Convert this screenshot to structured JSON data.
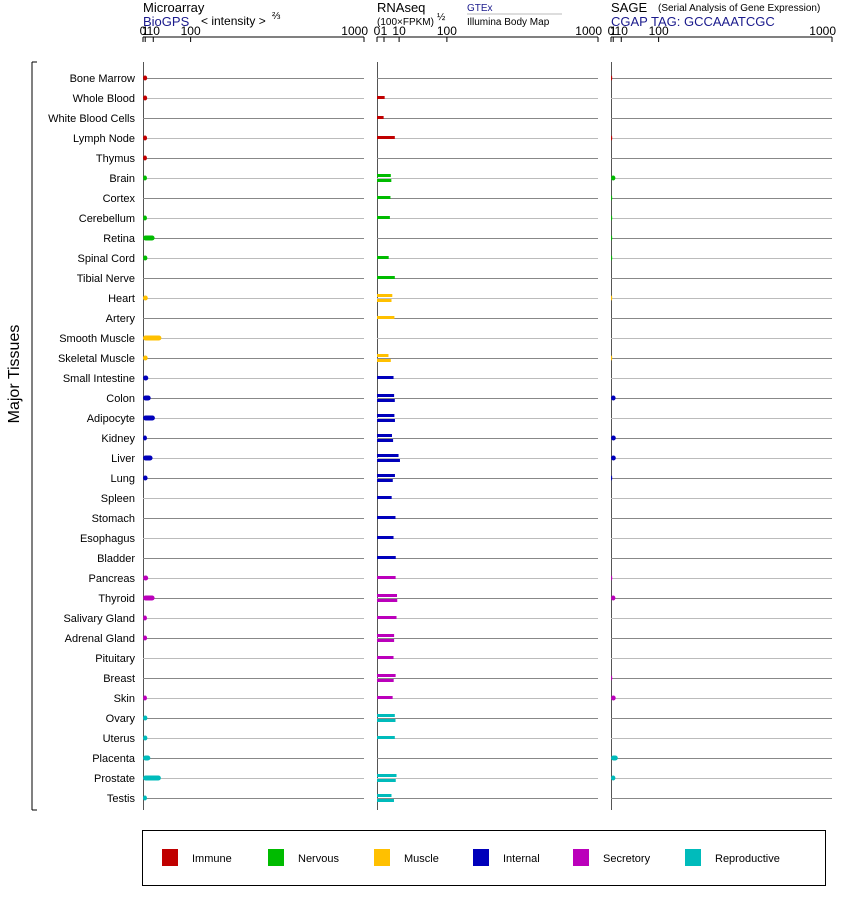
{
  "chart_data": {
    "type": "bar",
    "orientation": "horizontal",
    "y_axis_label": "Major Tissues",
    "tissues": [
      "Bone Marrow",
      "Whole Blood",
      "White Blood Cells",
      "Lymph Node",
      "Thymus",
      "Brain",
      "Cortex",
      "Cerebellum",
      "Retina",
      "Spinal Cord",
      "Tibial Nerve",
      "Heart",
      "Artery",
      "Smooth Muscle",
      "Skeletal Muscle",
      "Small Intestine",
      "Colon",
      "Adipocyte",
      "Kidney",
      "Liver",
      "Lung",
      "Spleen",
      "Stomach",
      "Esophagus",
      "Bladder",
      "Pancreas",
      "Thyroid",
      "Salivary Gland",
      "Adrenal Gland",
      "Pituitary",
      "Breast",
      "Skin",
      "Ovary",
      "Uterus",
      "Placenta",
      "Prostate",
      "Testis"
    ],
    "tissue_groups": [
      "Immune",
      "Immune",
      "Immune",
      "Immune",
      "Immune",
      "Nervous",
      "Nervous",
      "Nervous",
      "Nervous",
      "Nervous",
      "Nervous",
      "Muscle",
      "Muscle",
      "Muscle",
      "Muscle",
      "Internal",
      "Internal",
      "Internal",
      "Internal",
      "Internal",
      "Internal",
      "Internal",
      "Internal",
      "Internal",
      "Internal",
      "Secretory",
      "Secretory",
      "Secretory",
      "Secretory",
      "Secretory",
      "Secretory",
      "Secretory",
      "Reproductive",
      "Reproductive",
      "Reproductive",
      "Reproductive",
      "Reproductive"
    ],
    "legend": [
      {
        "name": "Immune",
        "color": "#c00000"
      },
      {
        "name": "Nervous",
        "color": "#00bb00"
      },
      {
        "name": "Muscle",
        "color": "#ffc000"
      },
      {
        "name": "Internal",
        "color": "#0000bb"
      },
      {
        "name": "Secretory",
        "color": "#bb00bb"
      },
      {
        "name": "Reproductive",
        "color": "#00bbbb"
      }
    ],
    "legend_position": "bottom",
    "panels": [
      {
        "id": "microarray",
        "title": "Microarray",
        "subtitle_left": "BioGPS",
        "subtitle_right": "< intensity >",
        "subtitle_exp": "⅔",
        "scale": "power 2/3",
        "ticks": [
          "0",
          "1",
          "10",
          "100",
          "1000"
        ],
        "xlim": [
          0,
          1000
        ],
        "values": [
          [
            2.6
          ],
          [
            2.6
          ],
          [],
          [
            2.5
          ],
          [
            2.4
          ],
          [
            2.4
          ],
          [],
          [
            2.4
          ],
          [
            12
          ],
          [
            2.8
          ],
          [],
          [
            3.2
          ],
          [],
          [
            24
          ],
          [
            3.1
          ],
          [
            3.7
          ],
          [
            6.5
          ],
          [
            12.5
          ],
          [
            2.4
          ],
          [
            9
          ],
          [
            3
          ],
          [],
          [],
          [],
          [],
          [
            3.6
          ],
          [
            12
          ],
          [
            2.4
          ],
          [
            2.5
          ],
          [],
          [],
          [
            2.4
          ],
          [
            2.8
          ],
          [
            2.8
          ],
          [
            6
          ],
          [
            23
          ],
          [
            2.4
          ]
        ]
      },
      {
        "id": "rnaseq",
        "title": "RNAseq",
        "subtitle_left": "(100×FPKM)",
        "subtitle_exp": "½",
        "source_title": "GTEx",
        "source_subtitle": "Illumina Body Map",
        "scale": "sqrt",
        "ticks": [
          "0",
          "1",
          "10",
          "100",
          "1000"
        ],
        "xlim": [
          0,
          1000
        ],
        "values": [
          [],
          [
            1.2
          ],
          [
            0.9
          ],
          [
            6.5
          ],
          [],
          [
            3.9,
            4.2
          ],
          [
            3.7
          ],
          [
            3.4
          ],
          [],
          [
            2.8
          ],
          [
            6.5
          ],
          [
            4.8,
            4.3
          ],
          [
            6.2
          ],
          [],
          [
            2.7,
            3.9
          ],
          [
            5.6
          ],
          [
            6,
            6.5
          ],
          [
            6.2,
            6.6
          ],
          [
            4.6,
            5.3
          ],
          [
            9.5,
            10.8
          ],
          [
            6.6,
            5.1
          ],
          [
            4.4
          ],
          [
            7
          ],
          [
            5.6
          ],
          [
            7.2
          ],
          [
            7.1
          ],
          [
            8.2,
            8.4
          ],
          [
            7.8
          ],
          [
            6,
            6
          ],
          [
            5.6
          ],
          [
            7.1,
            5.7
          ],
          [
            5
          ],
          [
            6.5,
            7
          ],
          [
            6.5
          ],
          [],
          [
            7.8,
            7.2
          ],
          [
            4.3,
            5.9
          ]
        ]
      },
      {
        "id": "sage",
        "title": "SAGE",
        "subtitle_left": "(Serial Analysis of Gene Expression)",
        "tag_line": "CGAP TAG: GCCAAATCGC",
        "scale": "power 2/3",
        "ticks": [
          "0",
          "1",
          "10",
          "100",
          "1000"
        ],
        "xlim": [
          0,
          1000
        ],
        "values": [
          [
            0.02
          ],
          [],
          [],
          [
            0.02
          ],
          [],
          [
            2.8
          ],
          [
            0.01
          ],
          [
            0.01
          ],
          [
            0.01
          ],
          [
            0.01
          ],
          [],
          [
            0.005
          ],
          [],
          [],
          [
            0.005
          ],
          [],
          [
            3
          ],
          [],
          [
            3.2
          ],
          [
            3.2
          ],
          [
            0.02
          ],
          [],
          [],
          [],
          [],
          [
            0.02
          ],
          [
            2.8
          ],
          [],
          [],
          [],
          [
            0.02
          ],
          [
            3.1
          ],
          [],
          [],
          [
            5.4
          ],
          [
            2.8
          ],
          []
        ]
      }
    ]
  }
}
